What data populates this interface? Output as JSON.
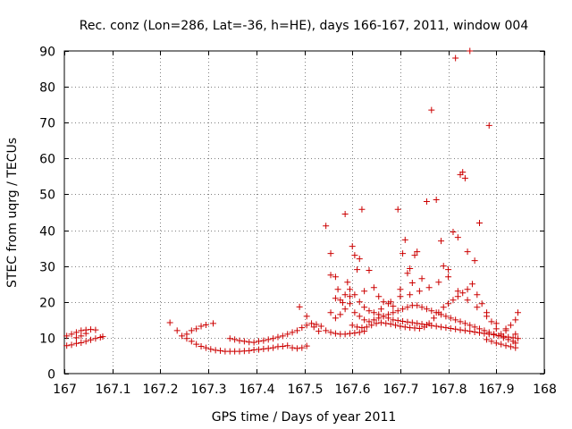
{
  "chart_data": {
    "type": "scatter",
    "title": "Rec. conz (Lon=286, Lat=-36, h=HE), days 166-167, 2011, window 004",
    "xlabel": "GPS time / Days of year 2011",
    "ylabel": "STEC from uqrg / TECUs",
    "xlim": [
      167,
      168
    ],
    "ylim": [
      0,
      90
    ],
    "grid": true,
    "marker": "+",
    "color": "#cc0000",
    "x_ticks": [
      {
        "value": 167,
        "label": "167"
      },
      {
        "value": 167.1,
        "label": "167.1"
      },
      {
        "value": 167.2,
        "label": "167.2"
      },
      {
        "value": 167.3,
        "label": "167.3"
      },
      {
        "value": 167.4,
        "label": "167.4"
      },
      {
        "value": 167.5,
        "label": "167.5"
      },
      {
        "value": 167.6,
        "label": "167.6"
      },
      {
        "value": 167.7,
        "label": "167.7"
      },
      {
        "value": 167.8,
        "label": "167.8"
      },
      {
        "value": 167.9,
        "label": "167.9"
      },
      {
        "value": 168,
        "label": "168"
      }
    ],
    "y_ticks": [
      {
        "value": 0,
        "label": "0"
      },
      {
        "value": 10,
        "label": "10"
      },
      {
        "value": 20,
        "label": "20"
      },
      {
        "value": 30,
        "label": "30"
      },
      {
        "value": 40,
        "label": "40"
      },
      {
        "value": 50,
        "label": "50"
      },
      {
        "value": 60,
        "label": "60"
      },
      {
        "value": 70,
        "label": "70"
      },
      {
        "value": 80,
        "label": "80"
      },
      {
        "value": 90,
        "label": "90"
      }
    ],
    "points": [
      [
        167.005,
        10.5
      ],
      [
        167.015,
        11.0
      ],
      [
        167.025,
        11.5
      ],
      [
        167.035,
        12.0
      ],
      [
        167.045,
        12.2
      ],
      [
        167.055,
        12.3
      ],
      [
        167.065,
        12.2
      ],
      [
        167.08,
        10.3
      ],
      [
        167.005,
        7.8
      ],
      [
        167.015,
        8.0
      ],
      [
        167.025,
        8.4
      ],
      [
        167.035,
        8.6
      ],
      [
        167.045,
        9.0
      ],
      [
        167.055,
        9.4
      ],
      [
        167.065,
        9.8
      ],
      [
        167.075,
        10.1
      ],
      [
        167.025,
        10.0
      ],
      [
        167.035,
        10.5
      ],
      [
        167.045,
        11.2
      ],
      [
        167.22,
        14.2
      ],
      [
        167.235,
        12.0
      ],
      [
        167.245,
        10.5
      ],
      [
        167.255,
        11.0
      ],
      [
        167.265,
        12.0
      ],
      [
        167.275,
        12.5
      ],
      [
        167.285,
        13.2
      ],
      [
        167.295,
        13.6
      ],
      [
        167.31,
        14.0
      ],
      [
        167.255,
        9.8
      ],
      [
        167.265,
        9.0
      ],
      [
        167.275,
        8.2
      ],
      [
        167.285,
        7.6
      ],
      [
        167.295,
        7.2
      ],
      [
        167.305,
        6.8
      ],
      [
        167.315,
        6.5
      ],
      [
        167.325,
        6.4
      ],
      [
        167.335,
        6.2
      ],
      [
        167.345,
        6.2
      ],
      [
        167.355,
        6.2
      ],
      [
        167.365,
        6.2
      ],
      [
        167.375,
        6.3
      ],
      [
        167.385,
        6.4
      ],
      [
        167.395,
        6.6
      ],
      [
        167.405,
        6.7
      ],
      [
        167.415,
        6.9
      ],
      [
        167.425,
        7.0
      ],
      [
        167.435,
        7.2
      ],
      [
        167.445,
        7.5
      ],
      [
        167.455,
        7.6
      ],
      [
        167.465,
        7.8
      ],
      [
        167.475,
        7.2
      ],
      [
        167.485,
        7.0
      ],
      [
        167.495,
        7.2
      ],
      [
        167.505,
        7.7
      ],
      [
        167.345,
        9.8
      ],
      [
        167.355,
        9.5
      ],
      [
        167.365,
        9.2
      ],
      [
        167.375,
        9.0
      ],
      [
        167.385,
        8.8
      ],
      [
        167.395,
        8.7
      ],
      [
        167.405,
        9.0
      ],
      [
        167.415,
        9.2
      ],
      [
        167.425,
        9.5
      ],
      [
        167.435,
        9.8
      ],
      [
        167.445,
        10.2
      ],
      [
        167.455,
        10.5
      ],
      [
        167.465,
        11.0
      ],
      [
        167.475,
        11.5
      ],
      [
        167.485,
        12.0
      ],
      [
        167.495,
        12.8
      ],
      [
        167.505,
        13.5
      ],
      [
        167.515,
        14.0
      ],
      [
        167.525,
        13.7
      ],
      [
        167.535,
        13.2
      ],
      [
        167.49,
        18.6
      ],
      [
        167.505,
        16.0
      ],
      [
        167.52,
        13.0
      ],
      [
        167.53,
        11.8
      ],
      [
        167.545,
        12.0
      ],
      [
        167.555,
        11.5
      ],
      [
        167.565,
        11.2
      ],
      [
        167.575,
        11.0
      ],
      [
        167.585,
        11.0
      ],
      [
        167.595,
        11.2
      ],
      [
        167.605,
        11.3
      ],
      [
        167.615,
        11.5
      ],
      [
        167.625,
        11.8
      ],
      [
        167.545,
        41.2
      ],
      [
        167.555,
        33.5
      ],
      [
        167.555,
        27.5
      ],
      [
        167.565,
        27.0
      ],
      [
        167.57,
        23.5
      ],
      [
        167.58,
        19.8
      ],
      [
        167.585,
        44.5
      ],
      [
        167.59,
        25.5
      ],
      [
        167.595,
        21.5
      ],
      [
        167.6,
        35.5
      ],
      [
        167.605,
        33.0
      ],
      [
        167.61,
        29.0
      ],
      [
        167.615,
        32.0
      ],
      [
        167.62,
        45.8
      ],
      [
        167.625,
        23.0
      ],
      [
        167.635,
        28.8
      ],
      [
        167.645,
        24.0
      ],
      [
        167.655,
        21.5
      ],
      [
        167.665,
        20.0
      ],
      [
        167.675,
        19.5
      ],
      [
        167.685,
        18.8
      ],
      [
        167.695,
        45.8
      ],
      [
        167.7,
        23.5
      ],
      [
        167.705,
        33.5
      ],
      [
        167.71,
        37.3
      ],
      [
        167.715,
        28.0
      ],
      [
        167.72,
        29.3
      ],
      [
        167.725,
        25.3
      ],
      [
        167.73,
        33.0
      ],
      [
        167.735,
        34.0
      ],
      [
        167.745,
        26.5
      ],
      [
        167.755,
        48.0
      ],
      [
        167.765,
        73.5
      ],
      [
        167.775,
        48.5
      ],
      [
        167.785,
        37.0
      ],
      [
        167.79,
        30.0
      ],
      [
        167.8,
        29.0
      ],
      [
        167.81,
        39.5
      ],
      [
        167.815,
        88.0
      ],
      [
        167.82,
        38.0
      ],
      [
        167.825,
        55.5
      ],
      [
        167.83,
        56.2
      ],
      [
        167.835,
        54.5
      ],
      [
        167.84,
        34.0
      ],
      [
        167.845,
        90.0
      ],
      [
        167.855,
        31.5
      ],
      [
        167.865,
        42.0
      ],
      [
        167.885,
        69.2
      ],
      [
        167.555,
        17.0
      ],
      [
        167.565,
        15.5
      ],
      [
        167.575,
        16.5
      ],
      [
        167.585,
        18.0
      ],
      [
        167.595,
        19.5
      ],
      [
        167.605,
        17.0
      ],
      [
        167.615,
        16.0
      ],
      [
        167.625,
        15.0
      ],
      [
        167.635,
        14.5
      ],
      [
        167.645,
        15.0
      ],
      [
        167.655,
        15.5
      ],
      [
        167.665,
        16.0
      ],
      [
        167.675,
        16.5
      ],
      [
        167.685,
        17.0
      ],
      [
        167.695,
        17.5
      ],
      [
        167.705,
        18.0
      ],
      [
        167.715,
        18.5
      ],
      [
        167.725,
        19.0
      ],
      [
        167.735,
        19.0
      ],
      [
        167.745,
        18.5
      ],
      [
        167.755,
        18.0
      ],
      [
        167.765,
        17.5
      ],
      [
        167.775,
        17.0
      ],
      [
        167.785,
        16.5
      ],
      [
        167.795,
        16.0
      ],
      [
        167.805,
        15.5
      ],
      [
        167.815,
        15.0
      ],
      [
        167.825,
        14.5
      ],
      [
        167.835,
        14.0
      ],
      [
        167.845,
        13.5
      ],
      [
        167.855,
        13.0
      ],
      [
        167.865,
        12.5
      ],
      [
        167.875,
        12.0
      ],
      [
        167.885,
        11.5
      ],
      [
        167.895,
        11.0
      ],
      [
        167.905,
        10.5
      ],
      [
        167.915,
        10.0
      ],
      [
        167.925,
        9.5
      ],
      [
        167.935,
        9.0
      ],
      [
        167.94,
        8.5
      ],
      [
        167.565,
        21.0
      ],
      [
        167.575,
        20.5
      ],
      [
        167.585,
        22.0
      ],
      [
        167.595,
        23.5
      ],
      [
        167.605,
        22.0
      ],
      [
        167.615,
        20.0
      ],
      [
        167.625,
        18.5
      ],
      [
        167.635,
        17.5
      ],
      [
        167.645,
        17.0
      ],
      [
        167.655,
        16.5
      ],
      [
        167.665,
        16.0
      ],
      [
        167.675,
        15.5
      ],
      [
        167.685,
        15.0
      ],
      [
        167.695,
        14.8
      ],
      [
        167.705,
        14.6
      ],
      [
        167.715,
        14.4
      ],
      [
        167.725,
        14.2
      ],
      [
        167.735,
        14.0
      ],
      [
        167.745,
        13.8
      ],
      [
        167.755,
        13.6
      ],
      [
        167.765,
        13.4
      ],
      [
        167.775,
        13.2
      ],
      [
        167.785,
        13.0
      ],
      [
        167.795,
        12.8
      ],
      [
        167.805,
        12.6
      ],
      [
        167.815,
        12.4
      ],
      [
        167.825,
        12.2
      ],
      [
        167.835,
        12.0
      ],
      [
        167.845,
        11.8
      ],
      [
        167.855,
        11.6
      ],
      [
        167.865,
        11.4
      ],
      [
        167.875,
        11.2
      ],
      [
        167.885,
        11.0
      ],
      [
        167.895,
        10.8
      ],
      [
        167.905,
        10.6
      ],
      [
        167.915,
        10.4
      ],
      [
        167.925,
        10.2
      ],
      [
        167.935,
        10.0
      ],
      [
        167.945,
        9.8
      ],
      [
        167.6,
        13.5
      ],
      [
        167.61,
        13.0
      ],
      [
        167.62,
        12.8
      ],
      [
        167.63,
        13.0
      ],
      [
        167.64,
        13.5
      ],
      [
        167.65,
        14.0
      ],
      [
        167.66,
        14.2
      ],
      [
        167.67,
        14.0
      ],
      [
        167.68,
        13.8
      ],
      [
        167.69,
        13.5
      ],
      [
        167.7,
        13.2
      ],
      [
        167.71,
        13.0
      ],
      [
        167.72,
        12.8
      ],
      [
        167.73,
        12.7
      ],
      [
        167.74,
        12.6
      ],
      [
        167.75,
        13.0
      ],
      [
        167.76,
        14.0
      ],
      [
        167.77,
        15.5
      ],
      [
        167.78,
        17.0
      ],
      [
        167.79,
        18.5
      ],
      [
        167.8,
        19.5
      ],
      [
        167.81,
        20.5
      ],
      [
        167.82,
        21.5
      ],
      [
        167.83,
        22.5
      ],
      [
        167.84,
        23.5
      ],
      [
        167.85,
        25.0
      ],
      [
        167.86,
        22.0
      ],
      [
        167.87,
        19.5
      ],
      [
        167.88,
        17.0
      ],
      [
        167.89,
        14.5
      ],
      [
        167.9,
        12.5
      ],
      [
        167.91,
        11.0
      ],
      [
        167.92,
        12.0
      ],
      [
        167.93,
        13.5
      ],
      [
        167.94,
        15.0
      ],
      [
        167.945,
        17.0
      ],
      [
        167.66,
        18.0
      ],
      [
        167.68,
        20.0
      ],
      [
        167.7,
        21.5
      ],
      [
        167.72,
        22.0
      ],
      [
        167.74,
        23.0
      ],
      [
        167.76,
        24.0
      ],
      [
        167.78,
        25.5
      ],
      [
        167.8,
        27.0
      ],
      [
        167.82,
        23.0
      ],
      [
        167.84,
        20.5
      ],
      [
        167.86,
        18.5
      ],
      [
        167.88,
        16.0
      ],
      [
        167.9,
        14.0
      ],
      [
        167.92,
        12.5
      ],
      [
        167.94,
        11.0
      ],
      [
        167.88,
        9.5
      ],
      [
        167.89,
        9.0
      ],
      [
        167.9,
        8.5
      ],
      [
        167.91,
        8.2
      ],
      [
        167.92,
        7.8
      ],
      [
        167.93,
        7.5
      ],
      [
        167.94,
        7.2
      ]
    ]
  }
}
